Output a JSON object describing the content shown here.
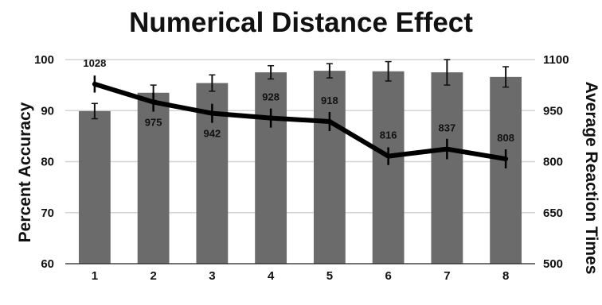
{
  "chart_data": {
    "type": "bar",
    "title": "Numerical Distance Effect",
    "categories": [
      "1",
      "2",
      "3",
      "4",
      "5",
      "6",
      "7",
      "8"
    ],
    "y_left": {
      "label": "Percent Accuracy",
      "ylim": [
        60,
        100
      ],
      "ticks": [
        60,
        70,
        80,
        90,
        100
      ]
    },
    "y_right": {
      "label": "Average Reaction Times",
      "ylim": [
        500,
        1100
      ],
      "ticks": [
        500,
        650,
        800,
        950,
        1100
      ]
    },
    "grid": true,
    "series": [
      {
        "type": "bar",
        "axis": "left",
        "color": "#6b6b6b",
        "values": [
          89.9,
          93.5,
          95.4,
          97.5,
          97.8,
          97.7,
          97.5,
          96.6
        ],
        "error": [
          1.5,
          1.5,
          1.6,
          1.3,
          1.4,
          1.9,
          2.5,
          2.0
        ]
      },
      {
        "type": "line",
        "axis": "right",
        "color": "#000000",
        "values": [
          1028,
          975,
          942,
          928,
          918,
          816,
          837,
          808
        ],
        "error": [
          25,
          28,
          28,
          28,
          28,
          26,
          30,
          28
        ],
        "labels": [
          "1028",
          "975",
          "942",
          "928",
          "918",
          "816",
          "837",
          "808"
        ]
      }
    ]
  }
}
